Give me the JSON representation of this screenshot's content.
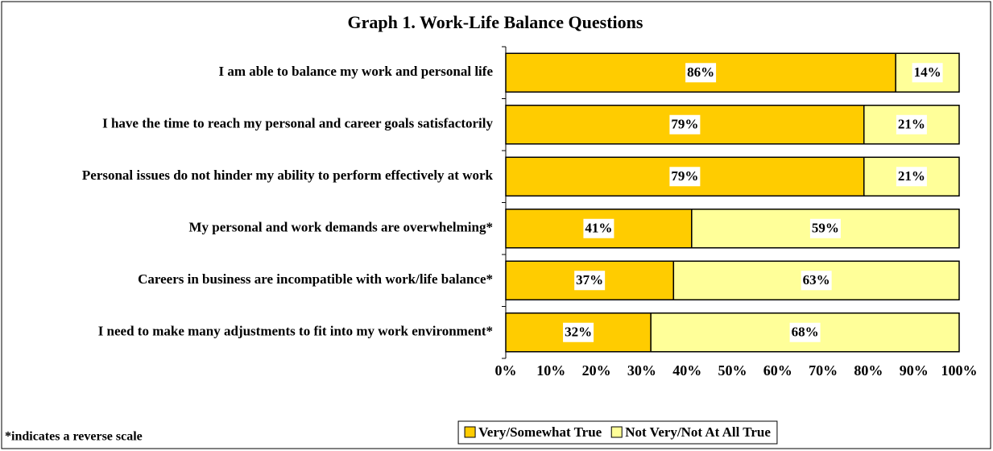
{
  "chart_data": {
    "type": "stacked_barh",
    "title": "Graph 1. Work-Life Balance Questions",
    "categories": [
      "I am able to balance my work and personal life",
      "I have the time to reach my personal and career goals satisfactorily",
      "Personal issues do not hinder my ability to perform effectively at work",
      "My personal and work demands are overwhelming*",
      "Careers in business are incompatible with work/life balance*",
      "I need to make many adjustments to fit into my work environment*"
    ],
    "series": [
      {
        "name": "Very/Somewhat True",
        "color": "#ffcc00",
        "values": [
          86,
          79,
          79,
          41,
          37,
          32
        ],
        "value_labels": [
          "86%",
          "79%",
          "79%",
          "41%",
          "37%",
          "32%"
        ]
      },
      {
        "name": "Not Very/Not At All True",
        "color": "#ffff99",
        "values": [
          14,
          21,
          21,
          59,
          63,
          68
        ],
        "value_labels": [
          "14%",
          "21%",
          "21%",
          "59%",
          "63%",
          "68%"
        ]
      }
    ],
    "xlim": [
      0,
      100
    ],
    "xticks": [
      {
        "value": 0,
        "label": "0%"
      },
      {
        "value": 10,
        "label": "10%"
      },
      {
        "value": 20,
        "label": "20%"
      },
      {
        "value": 30,
        "label": "30%"
      },
      {
        "value": 40,
        "label": "40%"
      },
      {
        "value": 50,
        "label": "50%"
      },
      {
        "value": 60,
        "label": "60%"
      },
      {
        "value": 70,
        "label": "70%"
      },
      {
        "value": 80,
        "label": "80%"
      },
      {
        "value": 90,
        "label": "90%"
      },
      {
        "value": 100,
        "label": "100%"
      }
    ],
    "legend": "bottom",
    "footnote": "*indicates a reverse scale"
  }
}
